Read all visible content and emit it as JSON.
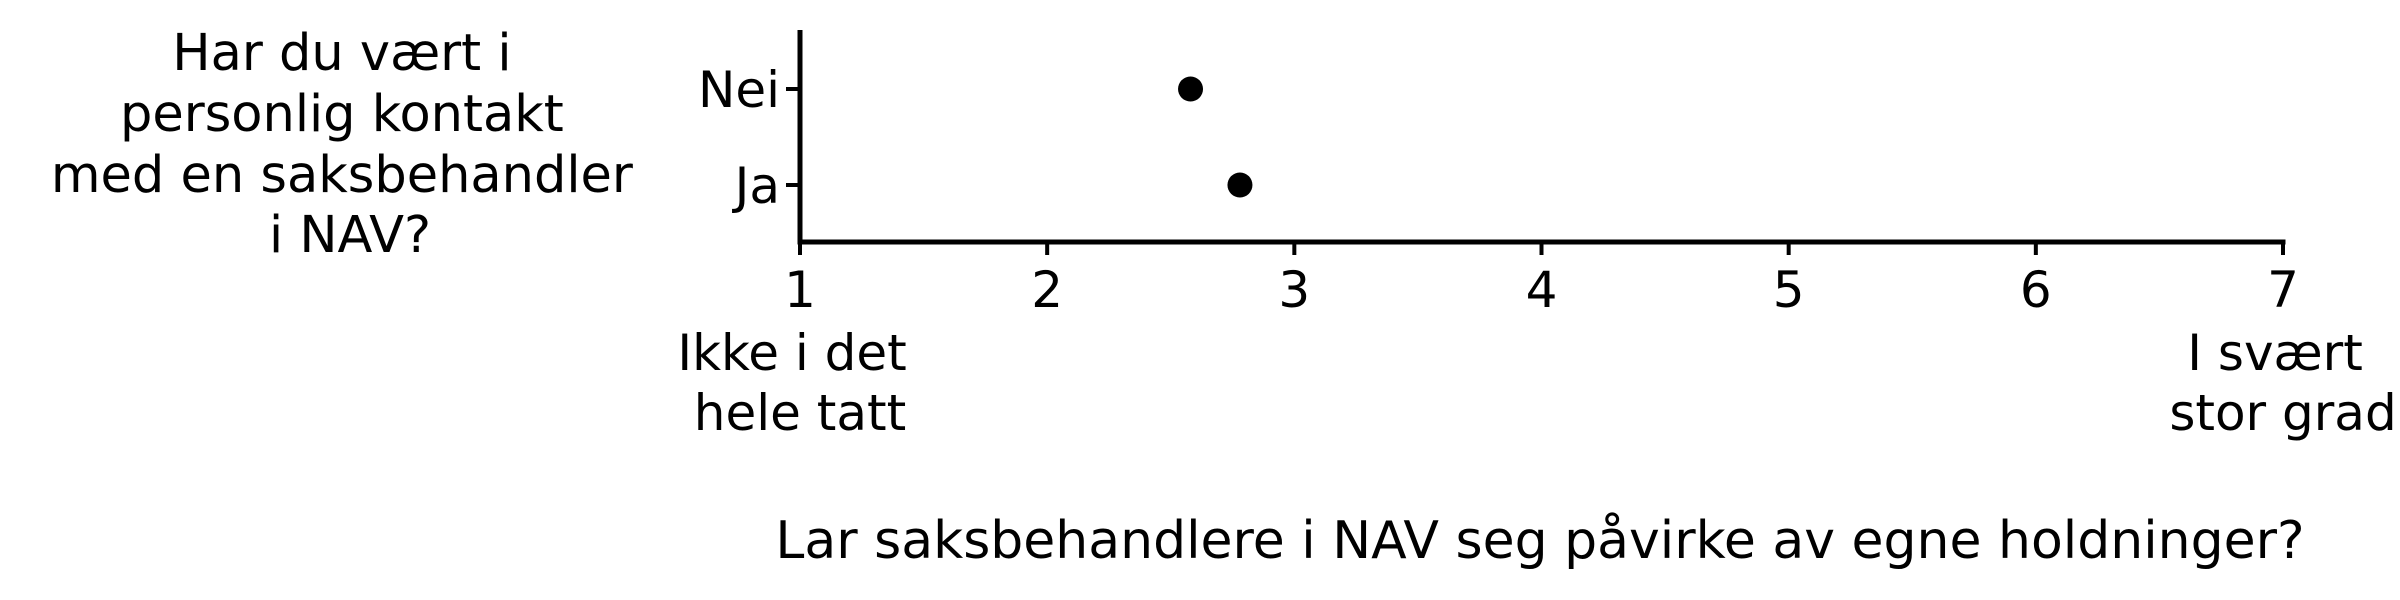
{
  "chart_data": {
    "type": "scatter",
    "ylabel": [
      "Har du vært i",
      "personlig kontakt",
      "med en saksbehandler",
      "i NAV?"
    ],
    "xlabel_symbol": "",
    "xlabel": "Lar saksbehandlere i NAV seg påvirke av egne holdninger?",
    "categories": [
      "Nei",
      "Ja"
    ],
    "values": [
      2.58,
      2.78
    ],
    "xlim": [
      1,
      7
    ],
    "xticks": [
      "1",
      "2",
      "3",
      "4",
      "5",
      "6",
      "7"
    ],
    "x_anchor_labels": {
      "low": [
        "Ikke i det",
        "hele tatt"
      ],
      "high": [
        "I svært",
        "stor grad"
      ]
    },
    "grid": false,
    "legend": "none",
    "marker_color": "#000000"
  }
}
